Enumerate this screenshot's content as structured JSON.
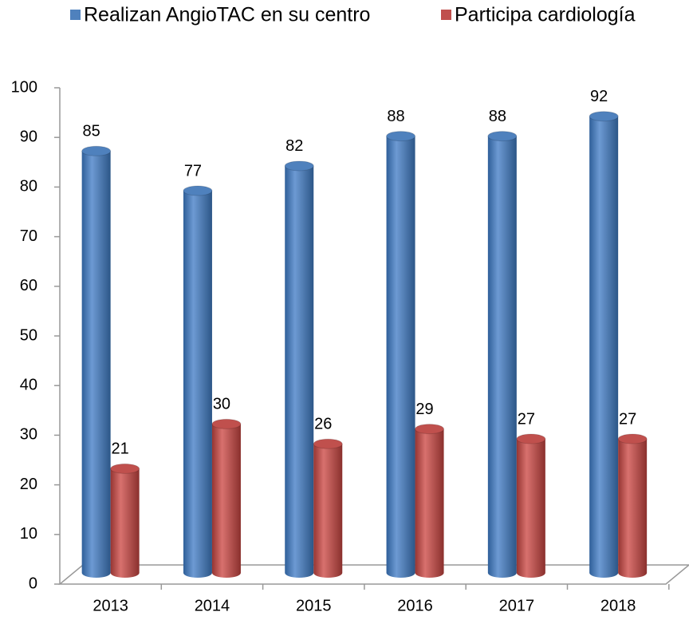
{
  "chart_data": {
    "type": "bar",
    "categories": [
      "2013",
      "2014",
      "2015",
      "2016",
      "2017",
      "2018"
    ],
    "series": [
      {
        "name": "Realizan AngioTAC en su centro",
        "color": "#4f81bd",
        "values": [
          85,
          77,
          82,
          88,
          88,
          92
        ]
      },
      {
        "name": "Participa cardiología",
        "color": "#c0504d",
        "values": [
          21,
          30,
          26,
          29,
          27,
          27
        ]
      }
    ],
    "ylim": [
      0,
      100
    ],
    "yticks": [
      0,
      10,
      20,
      30,
      40,
      50,
      60,
      70,
      80,
      90,
      100
    ],
    "legend": "top",
    "grid": false
  }
}
